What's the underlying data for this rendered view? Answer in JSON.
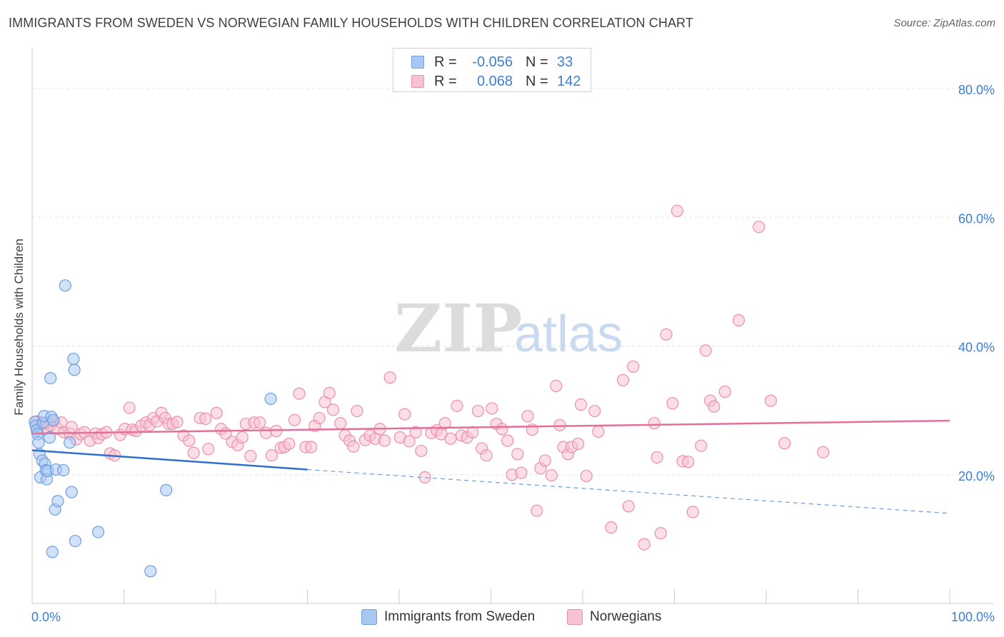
{
  "title": "IMMIGRANTS FROM SWEDEN VS NORWEGIAN FAMILY HOUSEHOLDS WITH CHILDREN CORRELATION CHART",
  "source": "Source: ZipAtlas.com",
  "watermark": {
    "zip": "ZIP",
    "atlas": "atlas"
  },
  "legend": {
    "rows": [
      {
        "r_label": "R =",
        "r_value": "-0.056",
        "n_label": "N =",
        "n_value": "33"
      },
      {
        "r_label": "R =",
        "r_value": "0.068",
        "n_label": "N =",
        "n_value": "142"
      }
    ]
  },
  "bottom_legend": {
    "series_a": "Immigrants from Sweden",
    "series_b": "Norwegians"
  },
  "colors": {
    "blue_fill": "#a9c8f2",
    "blue_stroke": "#6b9fe0",
    "blue_line": "#2f6fce",
    "pink_fill": "#f7c3d2",
    "pink_stroke": "#ec8fab",
    "pink_line": "#e2709a",
    "grid": "#dfe3e6",
    "axis_text": "#3d7ed6",
    "text": "#3a3f44"
  },
  "chart_data": {
    "type": "scatter",
    "title": "IMMIGRANTS FROM SWEDEN VS NORWEGIAN FAMILY HOUSEHOLDS WITH CHILDREN CORRELATION CHART",
    "xlabel": "",
    "ylabel": "Family Households with Children",
    "xlim": [
      0,
      100
    ],
    "ylim": [
      0,
      85
    ],
    "x_tick_labels": [
      {
        "value": 0,
        "label": "0.0%"
      },
      {
        "value": 100,
        "label": "100.0%"
      }
    ],
    "y_tick_labels": [
      {
        "value": 20,
        "label": "20.0%"
      },
      {
        "value": 40,
        "label": "40.0%"
      },
      {
        "value": 60,
        "label": "60.0%"
      },
      {
        "value": 80,
        "label": "80.0%"
      }
    ],
    "series": [
      {
        "name": "Immigrants from Sweden",
        "r": -0.056,
        "n": 33,
        "trend": {
          "solid": [
            [
              0,
              23.8
            ],
            [
              30,
              20.8
            ]
          ],
          "dashed": [
            [
              30,
              20.8
            ],
            [
              100,
              14.0
            ]
          ]
        },
        "points": [
          [
            0.3,
            28.2
          ],
          [
            0.4,
            27.6
          ],
          [
            0.5,
            26.9
          ],
          [
            0.6,
            26.3
          ],
          [
            0.7,
            25.0
          ],
          [
            0.8,
            23.2
          ],
          [
            0.9,
            19.6
          ],
          [
            1.1,
            22.2
          ],
          [
            1.2,
            28.1
          ],
          [
            1.3,
            29.1
          ],
          [
            1.4,
            21.7
          ],
          [
            1.5,
            20.7
          ],
          [
            1.6,
            19.3
          ],
          [
            1.7,
            20.6
          ],
          [
            1.9,
            25.8
          ],
          [
            2.0,
            35.0
          ],
          [
            2.1,
            29.0
          ],
          [
            2.2,
            8.0
          ],
          [
            2.3,
            28.5
          ],
          [
            2.5,
            14.6
          ],
          [
            2.6,
            20.8
          ],
          [
            2.8,
            15.9
          ],
          [
            3.4,
            20.7
          ],
          [
            3.6,
            49.4
          ],
          [
            4.1,
            25.0
          ],
          [
            4.3,
            17.3
          ],
          [
            4.5,
            38.0
          ],
          [
            4.6,
            36.3
          ],
          [
            4.7,
            9.7
          ],
          [
            7.2,
            11.1
          ],
          [
            12.9,
            5.0
          ],
          [
            14.6,
            17.6
          ],
          [
            26.0,
            31.8
          ]
        ]
      },
      {
        "name": "Norwegians",
        "r": 0.068,
        "n": 142,
        "trend": {
          "solid": [
            [
              0,
              26.4
            ],
            [
              100,
              28.4
            ]
          ]
        },
        "points": [
          [
            0.5,
            28.3
          ],
          [
            0.8,
            27.4
          ],
          [
            1.1,
            27.9
          ],
          [
            1.3,
            27.0
          ],
          [
            1.6,
            28.1
          ],
          [
            2.0,
            27.7
          ],
          [
            2.4,
            28.3
          ],
          [
            2.8,
            27.1
          ],
          [
            3.2,
            28.1
          ],
          [
            3.5,
            26.6
          ],
          [
            4.1,
            26.4
          ],
          [
            4.3,
            27.4
          ],
          [
            4.8,
            25.5
          ],
          [
            5.3,
            26.3
          ],
          [
            5.7,
            26.6
          ],
          [
            6.3,
            25.3
          ],
          [
            6.9,
            26.4
          ],
          [
            7.2,
            25.7
          ],
          [
            7.6,
            26.3
          ],
          [
            8.1,
            26.6
          ],
          [
            8.5,
            23.3
          ],
          [
            9.0,
            23.0
          ],
          [
            9.6,
            26.2
          ],
          [
            10.1,
            27.1
          ],
          [
            10.6,
            30.4
          ],
          [
            10.9,
            27.0
          ],
          [
            11.3,
            26.8
          ],
          [
            11.9,
            27.6
          ],
          [
            12.4,
            28.1
          ],
          [
            12.8,
            27.7
          ],
          [
            13.2,
            28.8
          ],
          [
            13.6,
            28.3
          ],
          [
            14.1,
            29.6
          ],
          [
            14.5,
            28.8
          ],
          [
            14.9,
            27.9
          ],
          [
            15.3,
            27.9
          ],
          [
            15.8,
            28.2
          ],
          [
            16.5,
            26.1
          ],
          [
            17.1,
            25.3
          ],
          [
            17.6,
            23.4
          ],
          [
            18.3,
            28.8
          ],
          [
            18.9,
            28.7
          ],
          [
            19.2,
            24.0
          ],
          [
            20.1,
            29.6
          ],
          [
            20.6,
            27.1
          ],
          [
            21.1,
            26.4
          ],
          [
            21.8,
            25.1
          ],
          [
            22.4,
            24.6
          ],
          [
            22.9,
            25.8
          ],
          [
            23.3,
            27.9
          ],
          [
            23.8,
            22.9
          ],
          [
            24.2,
            28.1
          ],
          [
            24.8,
            28.1
          ],
          [
            25.5,
            26.5
          ],
          [
            26.1,
            23.0
          ],
          [
            26.6,
            26.8
          ],
          [
            27.1,
            24.2
          ],
          [
            27.5,
            24.3
          ],
          [
            28.0,
            24.8
          ],
          [
            28.6,
            28.5
          ],
          [
            29.1,
            32.6
          ],
          [
            29.8,
            24.3
          ],
          [
            30.4,
            24.3
          ],
          [
            30.8,
            27.6
          ],
          [
            31.3,
            28.8
          ],
          [
            31.9,
            31.3
          ],
          [
            32.4,
            32.7
          ],
          [
            32.8,
            30.1
          ],
          [
            33.6,
            28.0
          ],
          [
            34.1,
            26.1
          ],
          [
            34.6,
            25.3
          ],
          [
            35.0,
            24.4
          ],
          [
            35.4,
            29.9
          ],
          [
            36.3,
            25.4
          ],
          [
            36.8,
            26.1
          ],
          [
            37.4,
            25.6
          ],
          [
            37.9,
            27.1
          ],
          [
            38.4,
            25.3
          ],
          [
            39.0,
            35.1
          ],
          [
            40.1,
            25.8
          ],
          [
            40.6,
            29.4
          ],
          [
            41.1,
            25.2
          ],
          [
            41.8,
            26.6
          ],
          [
            42.4,
            23.7
          ],
          [
            42.8,
            19.6
          ],
          [
            43.5,
            26.5
          ],
          [
            44.1,
            26.9
          ],
          [
            44.6,
            26.3
          ],
          [
            45.0,
            28.0
          ],
          [
            45.6,
            25.6
          ],
          [
            46.3,
            30.7
          ],
          [
            46.8,
            26.1
          ],
          [
            47.4,
            25.8
          ],
          [
            48.0,
            26.6
          ],
          [
            48.6,
            29.9
          ],
          [
            49.0,
            24.1
          ],
          [
            49.5,
            23.0
          ],
          [
            50.1,
            30.3
          ],
          [
            50.6,
            27.9
          ],
          [
            51.2,
            27.1
          ],
          [
            51.8,
            25.3
          ],
          [
            52.3,
            20.0
          ],
          [
            52.9,
            23.2
          ],
          [
            53.3,
            20.3
          ],
          [
            54.0,
            29.1
          ],
          [
            54.5,
            27.0
          ],
          [
            55.0,
            14.4
          ],
          [
            55.4,
            21.0
          ],
          [
            55.9,
            22.2
          ],
          [
            56.6,
            19.9
          ],
          [
            57.1,
            33.8
          ],
          [
            57.5,
            27.7
          ],
          [
            57.9,
            24.3
          ],
          [
            58.4,
            23.2
          ],
          [
            58.8,
            24.3
          ],
          [
            59.5,
            24.8
          ],
          [
            59.8,
            30.9
          ],
          [
            60.4,
            19.8
          ],
          [
            61.3,
            29.9
          ],
          [
            61.7,
            26.7
          ],
          [
            63.1,
            11.8
          ],
          [
            64.4,
            34.7
          ],
          [
            65.0,
            15.1
          ],
          [
            65.5,
            36.8
          ],
          [
            66.7,
            9.2
          ],
          [
            67.8,
            28.0
          ],
          [
            68.1,
            22.7
          ],
          [
            68.5,
            10.9
          ],
          [
            69.1,
            41.8
          ],
          [
            69.8,
            31.1
          ],
          [
            70.3,
            61.0
          ],
          [
            70.9,
            22.1
          ],
          [
            71.5,
            22.0
          ],
          [
            72.0,
            14.2
          ],
          [
            72.9,
            24.5
          ],
          [
            73.4,
            39.3
          ],
          [
            73.9,
            31.5
          ],
          [
            74.3,
            30.6
          ],
          [
            75.5,
            32.9
          ],
          [
            77.0,
            44.0
          ],
          [
            79.2,
            58.5
          ],
          [
            80.5,
            31.5
          ],
          [
            82.0,
            24.9
          ],
          [
            86.2,
            23.5
          ]
        ]
      }
    ]
  }
}
